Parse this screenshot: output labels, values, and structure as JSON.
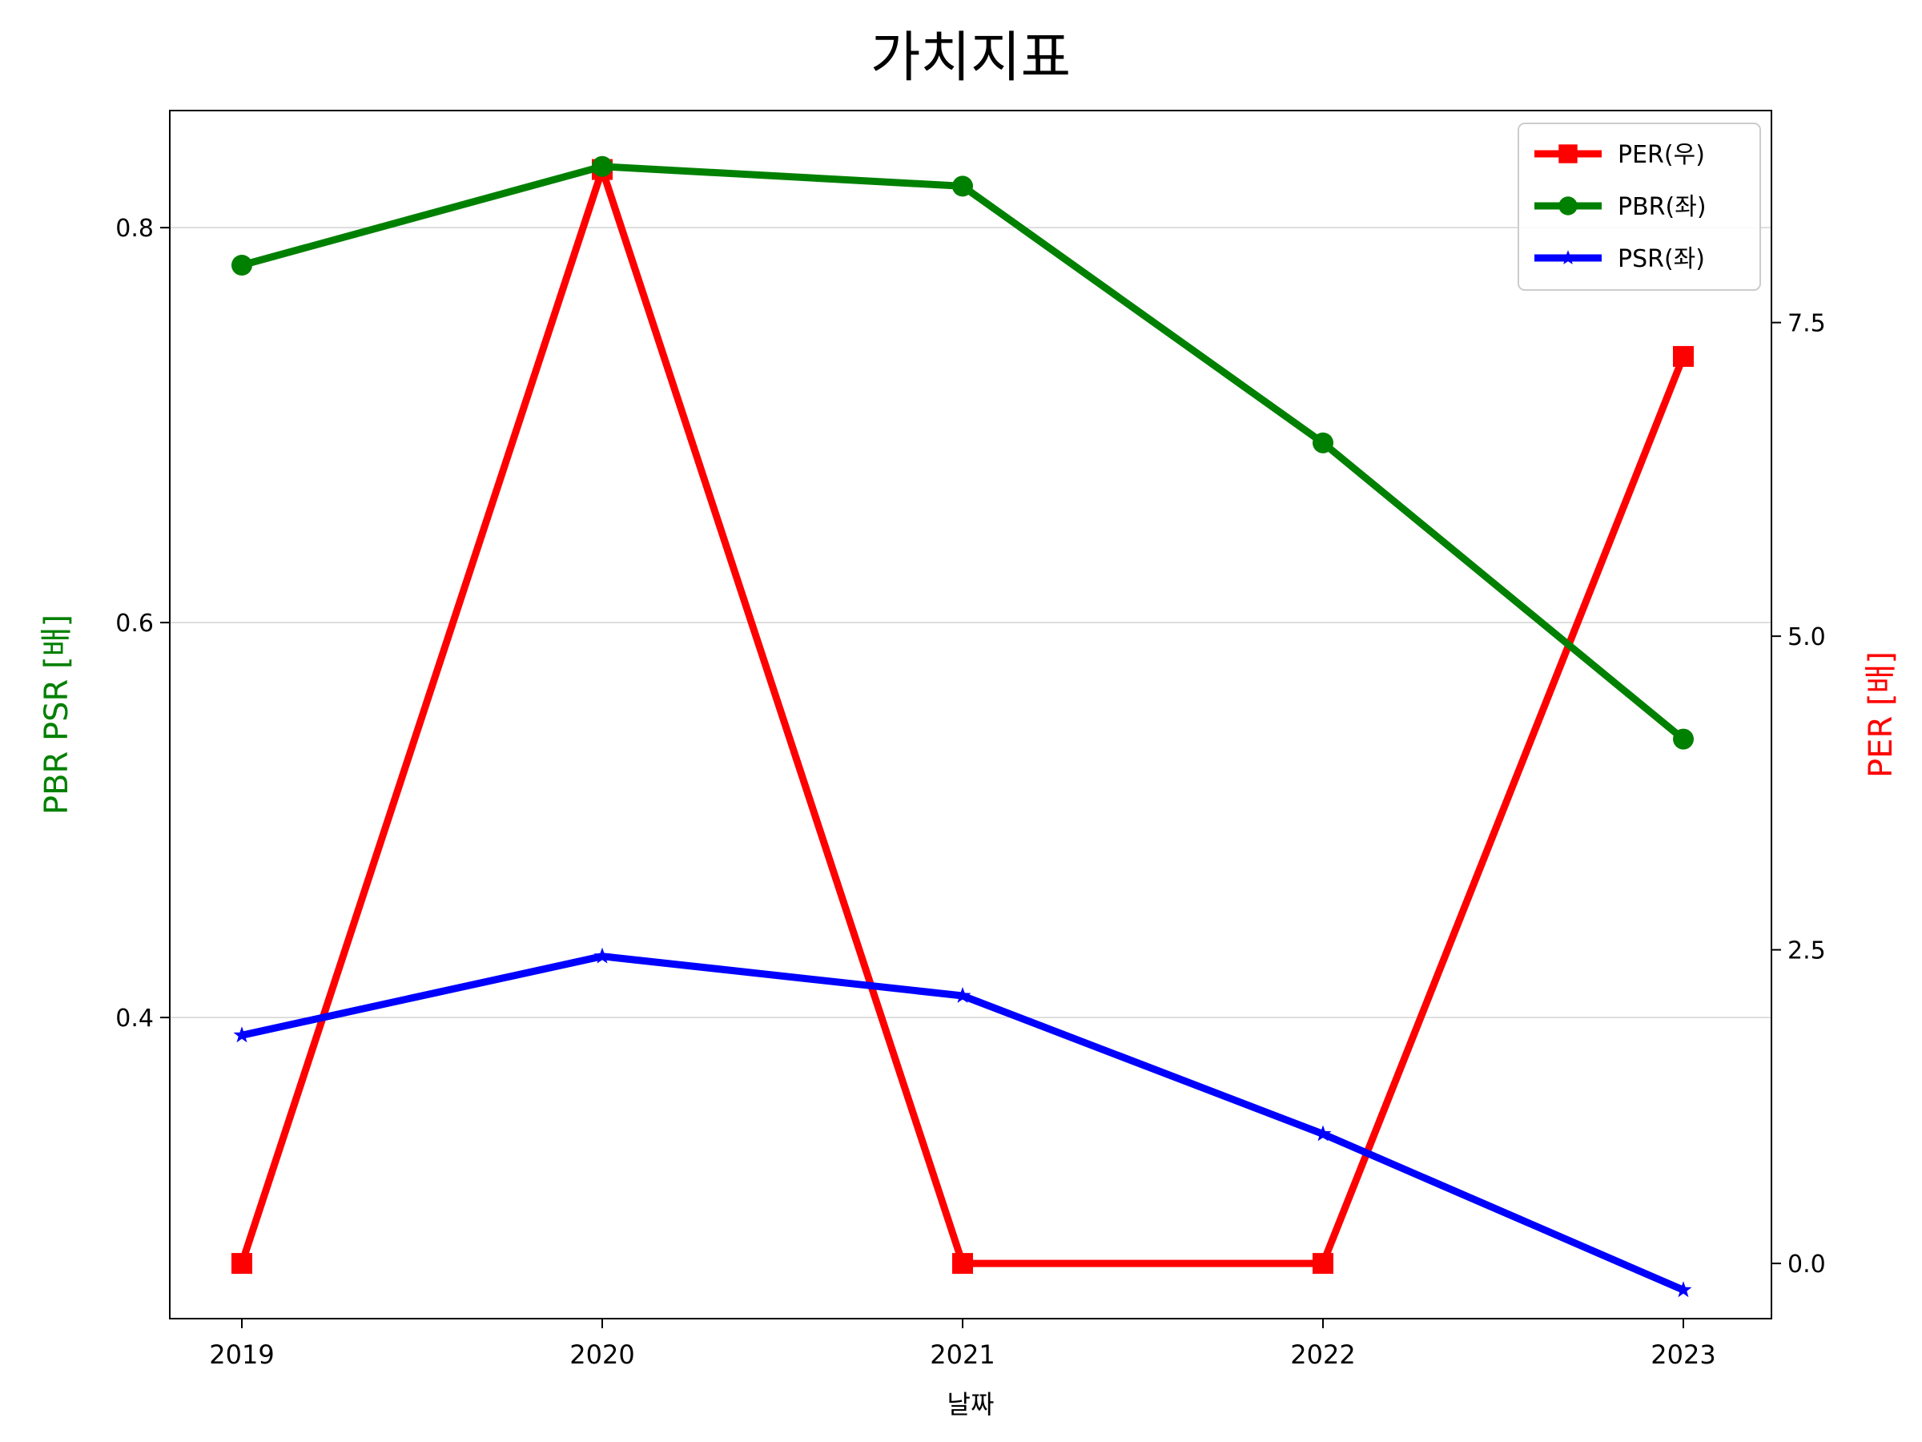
{
  "chart_data": {
    "type": "line",
    "title": "가치지표",
    "xlabel": "날짜",
    "ylabel_left": "PBR PSR [배]",
    "ylabel_right": "PER [배]",
    "ylabel_left_color": "#008000",
    "ylabel_right_color": "#ff0000",
    "categories": [
      "2019",
      "2020",
      "2021",
      "2022",
      "2023"
    ],
    "left_axis": {
      "ylim": [
        0.2475,
        0.8593
      ],
      "ticks": [
        0.4,
        0.6,
        0.8
      ],
      "tick_labels": [
        "0.4",
        "0.6",
        "0.8"
      ]
    },
    "right_axis": {
      "ylim": [
        -0.44,
        9.19
      ],
      "ticks": [
        0.0,
        2.5,
        5.0,
        7.5
      ],
      "tick_labels": [
        "0.0",
        "2.5",
        "5.0",
        "7.5"
      ]
    },
    "grid": "horizontal (left axis)",
    "legend_position": "top-right",
    "series": [
      {
        "name": "PER(우)",
        "axis": "right",
        "color": "#ff0000",
        "marker": "square",
        "values": [
          0.0,
          8.72,
          0.0,
          0.0,
          7.23
        ]
      },
      {
        "name": "PBR(좌)",
        "axis": "left",
        "color": "#008000",
        "marker": "circle",
        "values": [
          0.781,
          0.831,
          0.821,
          0.691,
          0.541
        ]
      },
      {
        "name": "PSR(좌)",
        "axis": "left",
        "color": "#0000ff",
        "marker": "star",
        "values": [
          0.391,
          0.431,
          0.411,
          0.341,
          0.262
        ]
      }
    ]
  }
}
